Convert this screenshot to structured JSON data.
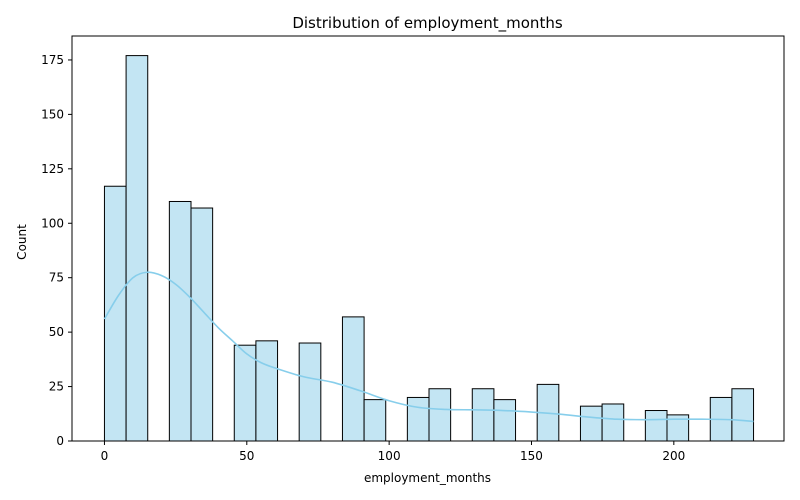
{
  "chart_data": {
    "type": "bar",
    "title": "Distribution of employment_months",
    "xlabel": "employment_months",
    "ylabel": "Count",
    "xlim": [
      -11.4,
      238.7
    ],
    "ylim": [
      0,
      186
    ],
    "x_ticks": [
      0,
      50,
      100,
      150,
      200
    ],
    "y_ticks": [
      0,
      25,
      50,
      75,
      100,
      125,
      150,
      175
    ],
    "bin_width": 7.6,
    "bins": [
      {
        "x0": 0.0,
        "x1": 7.6,
        "count": 117
      },
      {
        "x0": 7.6,
        "x1": 15.2,
        "count": 177
      },
      {
        "x0": 22.8,
        "x1": 30.4,
        "count": 110
      },
      {
        "x0": 30.4,
        "x1": 38.0,
        "count": 107
      },
      {
        "x0": 45.6,
        "x1": 53.2,
        "count": 44
      },
      {
        "x0": 53.2,
        "x1": 60.8,
        "count": 46
      },
      {
        "x0": 68.4,
        "x1": 76.0,
        "count": 45
      },
      {
        "x0": 83.6,
        "x1": 91.2,
        "count": 57
      },
      {
        "x0": 91.2,
        "x1": 98.8,
        "count": 19
      },
      {
        "x0": 106.4,
        "x1": 114.0,
        "count": 20
      },
      {
        "x0": 114.0,
        "x1": 121.6,
        "count": 24
      },
      {
        "x0": 129.2,
        "x1": 136.8,
        "count": 24
      },
      {
        "x0": 136.8,
        "x1": 144.4,
        "count": 19
      },
      {
        "x0": 152.0,
        "x1": 159.6,
        "count": 26
      },
      {
        "x0": 167.2,
        "x1": 174.8,
        "count": 16
      },
      {
        "x0": 174.8,
        "x1": 182.4,
        "count": 17
      },
      {
        "x0": 190.0,
        "x1": 197.6,
        "count": 14
      },
      {
        "x0": 197.6,
        "x1": 205.2,
        "count": 12
      },
      {
        "x0": 212.8,
        "x1": 220.4,
        "count": 20
      },
      {
        "x0": 220.4,
        "x1": 228.0,
        "count": 24
      }
    ],
    "kde": {
      "x": [
        0,
        5,
        10,
        15,
        20,
        25,
        30,
        35,
        40,
        45,
        50,
        55,
        60,
        70,
        80,
        90,
        100,
        110,
        120,
        130,
        140,
        150,
        160,
        170,
        180,
        190,
        200,
        210,
        220,
        228
      ],
      "y": [
        56,
        67,
        75,
        77.5,
        76,
        72,
        66,
        59,
        52,
        46,
        40,
        36,
        33.5,
        29.5,
        27,
        23,
        18.5,
        15.5,
        14.5,
        14.3,
        14,
        13.3,
        12.3,
        11,
        10,
        9.8,
        10,
        10,
        9.8,
        9
      ]
    },
    "colors": {
      "bar_fill": "#c3e5f3",
      "bar_edge": "#000000",
      "kde_line": "#87ceeb"
    },
    "grid": false,
    "legend": "none"
  }
}
